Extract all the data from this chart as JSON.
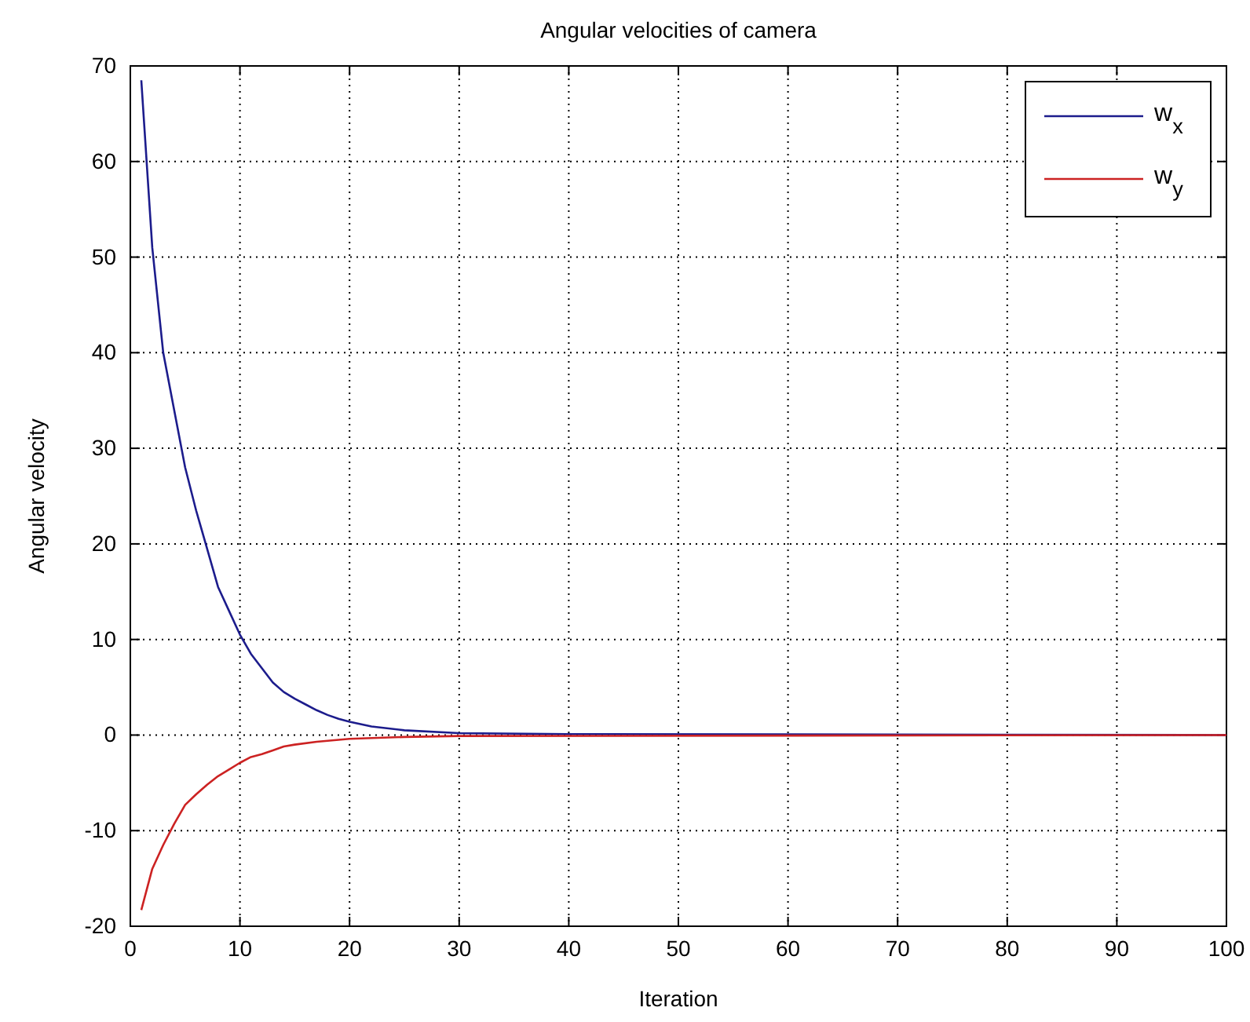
{
  "chart_data": {
    "type": "line",
    "title": "Angular velocities of camera",
    "xlabel": "Iteration",
    "ylabel": "Angular velocity",
    "xlim": [
      0,
      100
    ],
    "ylim": [
      -20,
      70
    ],
    "xticks": [
      0,
      10,
      20,
      30,
      40,
      50,
      60,
      70,
      80,
      90,
      100
    ],
    "yticks": [
      -20,
      -10,
      0,
      10,
      20,
      30,
      40,
      50,
      60,
      70
    ],
    "grid": true,
    "legend": "top right",
    "line_style": "solid",
    "marker": "none",
    "series": [
      {
        "name": "w$_{x}$",
        "color": "#1c1c8c",
        "x": [
          1,
          2,
          3,
          4,
          5,
          6,
          7,
          8,
          9,
          10,
          11,
          12,
          13,
          14,
          15,
          16,
          17,
          18,
          19,
          20,
          22,
          25,
          30,
          40,
          100
        ],
        "values": [
          68.5,
          51,
          40,
          34,
          28,
          23.5,
          19.5,
          15.5,
          13,
          10.5,
          8.5,
          7,
          5.5,
          4.5,
          3.8,
          3.2,
          2.6,
          2.1,
          1.7,
          1.4,
          0.9,
          0.5,
          0.2,
          0.1,
          0
        ]
      },
      {
        "name": "w$_{y}$",
        "color": "#cc2222",
        "x": [
          1,
          2,
          3,
          4,
          5,
          6,
          7,
          8,
          9,
          10,
          11,
          12,
          13,
          14,
          15,
          17,
          20,
          25,
          30,
          100
        ],
        "values": [
          -18.3,
          -14,
          -11.5,
          -9.3,
          -7.3,
          -6.2,
          -5.2,
          -4.3,
          -3.6,
          -2.9,
          -2.3,
          -2,
          -1.6,
          -1.2,
          -1,
          -0.7,
          -0.4,
          -0.2,
          -0.1,
          0
        ]
      }
    ]
  }
}
